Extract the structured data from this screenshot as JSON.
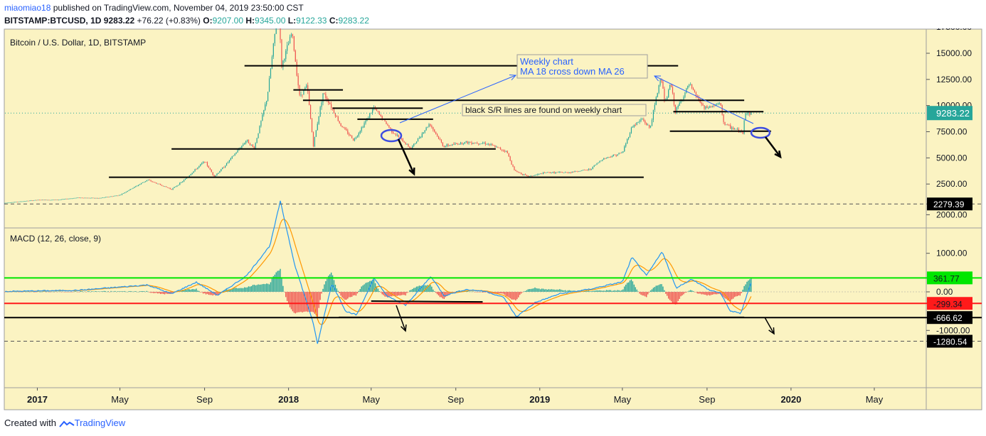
{
  "header": {
    "author": "miaomiao18",
    "published": "published on TradingView.com, November 04, 2019 23:50:00 CST",
    "symbol": "BITSTAMP:BTCUSD, 1D",
    "price": "9283.22",
    "change": "+76.22 (+0.83%)",
    "open_label": "O:",
    "open": "9207.00",
    "high_label": "H:",
    "high": "9345.00",
    "low_label": "L:",
    "low": "9122.33",
    "close_label": "C:",
    "close": "9283.22"
  },
  "footer": {
    "created_with": "Created with",
    "brand": "TradingView"
  },
  "colors": {
    "background": "#fbf3c2",
    "up": "#26a69a",
    "down": "#ef5350",
    "support_line": "#000000",
    "annotation_arrow": "#2962ff",
    "macd_line": "#2196f3",
    "signal_line": "#ff9800",
    "green_level": "#00e600",
    "red_level": "#ff1a1a"
  },
  "chart_data": [
    {
      "type": "candlestick",
      "title": "Bitcoin / U.S. Dollar, 1D, BITSTAMP",
      "x_tick_labels": [
        "2017",
        "May",
        "Sep",
        "2018",
        "May",
        "Sep",
        "2019",
        "May",
        "Sep",
        "2020",
        "May"
      ],
      "y_tick_labels": [
        "2500.00",
        "5000.00",
        "7500.00",
        "10000.00",
        "12500.00",
        "15000.00",
        "17500.00"
      ],
      "ylim": [
        0,
        19000
      ],
      "last_price_label": "9283.22",
      "price_path": [
        [
          "2016-11-15",
          700
        ],
        [
          "2017-01-01",
          980
        ],
        [
          "2017-02-01",
          1000
        ],
        [
          "2017-03-01",
          1200
        ],
        [
          "2017-04-01",
          1150
        ],
        [
          "2017-05-01",
          1450
        ],
        [
          "2017-06-10",
          2900
        ],
        [
          "2017-07-15",
          2000
        ],
        [
          "2017-08-01",
          2800
        ],
        [
          "2017-09-01",
          4700
        ],
        [
          "2017-09-15",
          3200
        ],
        [
          "2017-10-01",
          4300
        ],
        [
          "2017-11-01",
          6700
        ],
        [
          "2017-11-12",
          5900
        ],
        [
          "2017-12-01",
          10800
        ],
        [
          "2017-12-17",
          19500
        ],
        [
          "2017-12-22",
          13800
        ],
        [
          "2018-01-06",
          17000
        ],
        [
          "2018-01-17",
          10900
        ],
        [
          "2018-01-28",
          11900
        ],
        [
          "2018-02-06",
          6200
        ],
        [
          "2018-02-20",
          11200
        ],
        [
          "2018-03-01",
          10300
        ],
        [
          "2018-03-17",
          8200
        ],
        [
          "2018-04-06",
          6700
        ],
        [
          "2018-05-05",
          9800
        ],
        [
          "2018-06-01",
          7500
        ],
        [
          "2018-06-28",
          5900
        ],
        [
          "2018-07-25",
          8300
        ],
        [
          "2018-08-14",
          6100
        ],
        [
          "2018-09-15",
          6500
        ],
        [
          "2018-10-15",
          6400
        ],
        [
          "2018-11-14",
          5600
        ],
        [
          "2018-11-25",
          3800
        ],
        [
          "2018-12-15",
          3200
        ],
        [
          "2019-01-10",
          3600
        ],
        [
          "2019-02-10",
          3600
        ],
        [
          "2019-03-15",
          3900
        ],
        [
          "2019-04-02",
          4900
        ],
        [
          "2019-05-01",
          5500
        ],
        [
          "2019-05-15",
          8000
        ],
        [
          "2019-05-30",
          8700
        ],
        [
          "2019-06-10",
          7800
        ],
        [
          "2019-06-26",
          12900
        ],
        [
          "2019-07-02",
          10100
        ],
        [
          "2019-07-10",
          12200
        ],
        [
          "2019-07-17",
          9400
        ],
        [
          "2019-08-06",
          12000
        ],
        [
          "2019-08-28",
          9700
        ],
        [
          "2019-09-20",
          10200
        ],
        [
          "2019-09-26",
          8200
        ],
        [
          "2019-10-23",
          7400
        ],
        [
          "2019-10-26",
          9300
        ],
        [
          "2019-11-04",
          9283
        ]
      ],
      "support_resistance": [
        {
          "from": "2017-04-15",
          "to": "2019-06-01",
          "y": 3150
        },
        {
          "from": "2017-07-15",
          "to": "2018-10-29",
          "y": 5850
        },
        {
          "from": "2017-10-29",
          "to": "2019-07-21",
          "y": 13800
        },
        {
          "from": "2018-01-08",
          "to": "2018-03-21",
          "y": 11500
        },
        {
          "from": "2018-01-22",
          "to": "2019-10-25",
          "y": 10500
        },
        {
          "from": "2018-03-06",
          "to": "2018-07-15",
          "y": 9750
        },
        {
          "from": "2018-04-11",
          "to": "2018-07-30",
          "y": 8700
        },
        {
          "from": "2019-07-14",
          "to": "2019-11-22",
          "y": 9420
        },
        {
          "from": "2019-07-09",
          "to": "2019-12-03",
          "y": 7550
        }
      ]
    },
    {
      "type": "line",
      "title": "MACD (12, 26, close, 9)",
      "series": [],
      "y_tick_labels": [
        "-1000.00",
        "0.00",
        "1000.00",
        "2000.00"
      ],
      "ylim": [
        -1450,
        2450
      ],
      "levels": [
        {
          "label": "2279.39",
          "value": 2279.39,
          "style": "dashed"
        },
        {
          "label": "361.77",
          "value": 361.77,
          "style": "green"
        },
        {
          "label": "-299.34",
          "value": -299.34,
          "style": "red"
        },
        {
          "label": "-666.62",
          "value": -666.62,
          "style": "black"
        },
        {
          "label": "-1280.54",
          "value": -1280.54,
          "style": "dashed"
        }
      ],
      "macd_path": [
        [
          "2016-11-15",
          10
        ],
        [
          "2017-03-01",
          40
        ],
        [
          "2017-06-10",
          180
        ],
        [
          "2017-07-15",
          -50
        ],
        [
          "2017-08-20",
          250
        ],
        [
          "2017-09-20",
          -90
        ],
        [
          "2017-11-01",
          420
        ],
        [
          "2017-12-05",
          1200
        ],
        [
          "2017-12-20",
          2350
        ],
        [
          "2018-01-10",
          700
        ],
        [
          "2018-02-05",
          -750
        ],
        [
          "2018-02-12",
          -1350
        ],
        [
          "2018-03-05",
          220
        ],
        [
          "2018-03-25",
          -500
        ],
        [
          "2018-04-10",
          -600
        ],
        [
          "2018-05-05",
          350
        ],
        [
          "2018-05-25",
          -120
        ],
        [
          "2018-06-20",
          -350
        ],
        [
          "2018-07-27",
          400
        ],
        [
          "2018-08-15",
          -100
        ],
        [
          "2018-09-15",
          60
        ],
        [
          "2018-10-15",
          10
        ],
        [
          "2018-11-10",
          -150
        ],
        [
          "2018-11-28",
          -650
        ],
        [
          "2018-12-25",
          -280
        ],
        [
          "2019-01-30",
          -50
        ],
        [
          "2019-03-15",
          70
        ],
        [
          "2019-05-01",
          260
        ],
        [
          "2019-05-15",
          900
        ],
        [
          "2019-06-05",
          420
        ],
        [
          "2019-06-28",
          1050
        ],
        [
          "2019-07-18",
          100
        ],
        [
          "2019-08-10",
          330
        ],
        [
          "2019-09-05",
          40
        ],
        [
          "2019-09-20",
          -20
        ],
        [
          "2019-10-05",
          -500
        ],
        [
          "2019-10-20",
          -560
        ],
        [
          "2019-11-04",
          240
        ]
      ]
    }
  ],
  "annotations": {
    "weekly_box_line1": "Weekly chart",
    "weekly_box_line2": "MA 18 cross down MA 26",
    "sr_note": "black S/R lines are found on weekly chart"
  }
}
